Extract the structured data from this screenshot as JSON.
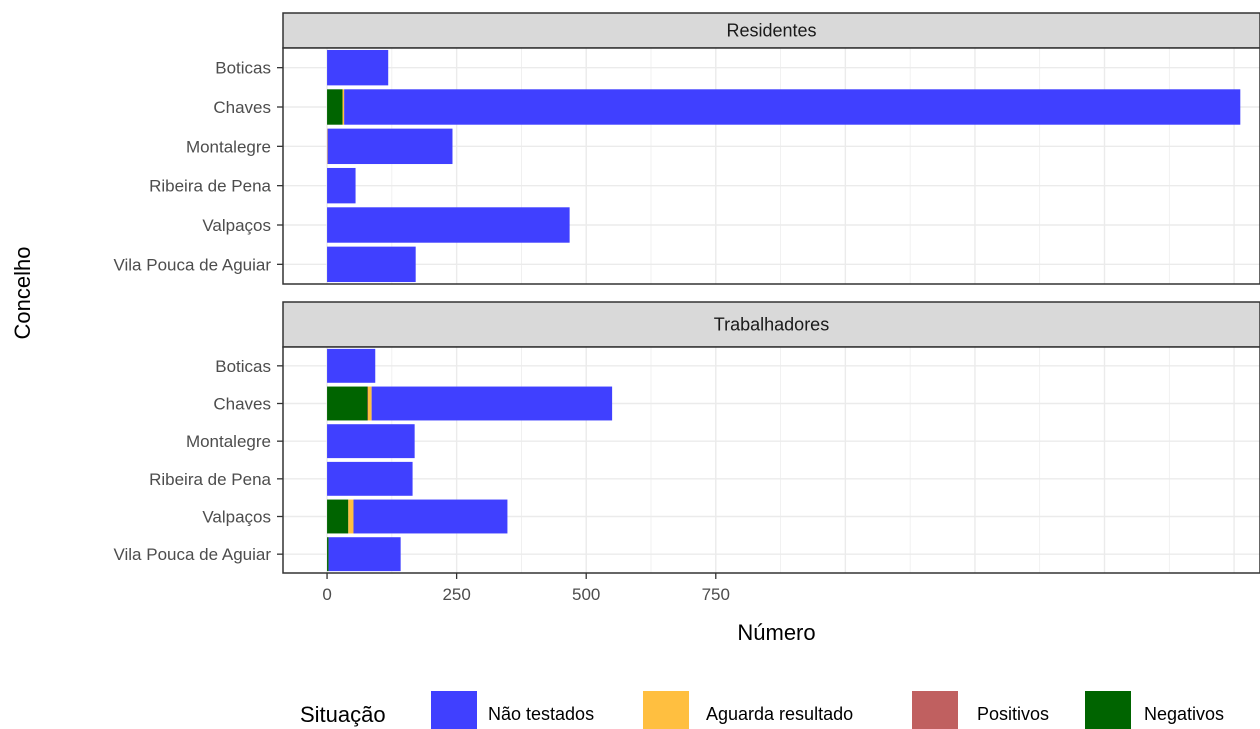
{
  "chart_data": {
    "type": "bar",
    "orientation": "horizontal",
    "stacked": true,
    "xlabel": "Número",
    "ylabel": "Concelho",
    "xlim": [
      -85,
      1800
    ],
    "x_ticks": [
      0,
      250,
      500,
      750
    ],
    "x_tick_labels": [
      "0",
      "250",
      "500",
      "750"
    ],
    "grid": true,
    "legend_position": "bottom",
    "legend_title": "Situação",
    "categories": [
      "Boticas",
      "Chaves",
      "Montalegre",
      "Ribeira de Pena",
      "Valpaços",
      "Vila Pouca de Aguiar"
    ],
    "series_order": [
      "Negativos",
      "Positivos",
      "Aguarda resultado",
      "Não testados"
    ],
    "legend_order": [
      "Não testados",
      "Aguarda resultado",
      "Positivos",
      "Negativos"
    ],
    "colors": {
      "Não testados": "#4040FF",
      "Aguarda resultado": "#FFBF40",
      "Positivos": "#C06060",
      "Negativos": "#006400"
    },
    "panels": [
      {
        "title": "Residentes",
        "series": [
          {
            "name": "Negativos",
            "values": [
              0,
              30,
              0,
              0,
              0,
              0
            ]
          },
          {
            "name": "Positivos",
            "values": [
              0,
              0,
              0,
              0,
              0,
              0
            ]
          },
          {
            "name": "Aguarda resultado",
            "values": [
              0,
              3,
              1,
              0,
              0,
              0
            ]
          },
          {
            "name": "Não testados",
            "values": [
              118,
              1729,
              241,
              55,
              468,
              171
            ]
          }
        ]
      },
      {
        "title": "Trabalhadores",
        "series": [
          {
            "name": "Negativos",
            "values": [
              0,
              78,
              0,
              0,
              41,
              3
            ]
          },
          {
            "name": "Positivos",
            "values": [
              0,
              1,
              0,
              0,
              0,
              0
            ]
          },
          {
            "name": "Aguarda resultado",
            "values": [
              0,
              7,
              0,
              0,
              10,
              0
            ]
          },
          {
            "name": "Não testados",
            "values": [
              93,
              464,
              169,
              165,
              297,
              139
            ]
          }
        ]
      }
    ]
  }
}
